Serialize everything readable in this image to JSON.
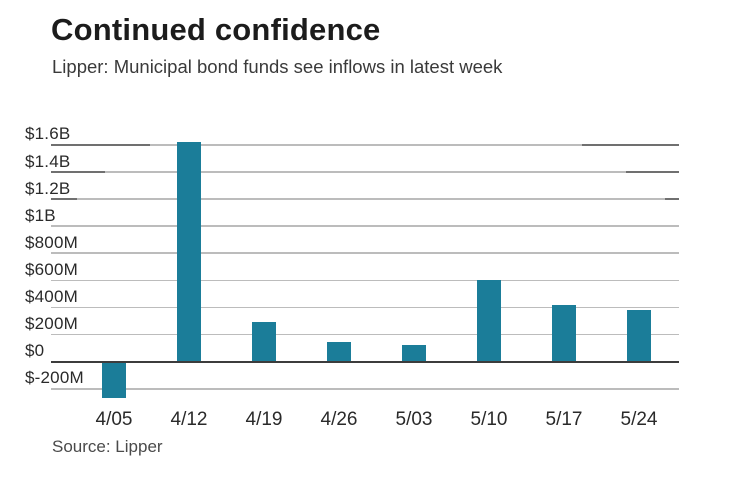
{
  "header": {
    "title": "Continued confidence",
    "subtitle": "Lipper: Municipal bond funds see inflows in latest week"
  },
  "footer": {
    "source": "Source: Lipper"
  },
  "colors": {
    "bar": "#1b7d99",
    "gridline": "#bcbcbc",
    "gridline_dark": "#707070",
    "zero_line": "#3c3c3c",
    "title_text": "#1c1c1c",
    "subtitle_text": "#3a3a3a",
    "axis_text": "#2a2a2a",
    "source_text": "#4a4a4a",
    "background": "#ffffff"
  },
  "chart_data": {
    "type": "bar",
    "title": "Continued confidence",
    "subtitle": "Lipper: Municipal bond funds see inflows in latest week",
    "source": "Source: Lipper",
    "categories": [
      "4/05",
      "4/12",
      "4/19",
      "4/26",
      "5/03",
      "5/10",
      "5/17",
      "5/24"
    ],
    "values": [
      -270,
      1620,
      290,
      145,
      125,
      605,
      420,
      385
    ],
    "unit": "USD millions (weekly net fund flows)",
    "xlabel": "",
    "ylabel": "",
    "y_ticks": [
      {
        "label": "$1.6B",
        "value": 1600
      },
      {
        "label": "$1.4B",
        "value": 1400
      },
      {
        "label": "$1.2B",
        "value": 1200
      },
      {
        "label": "$1B",
        "value": 1000
      },
      {
        "label": "$800M",
        "value": 800
      },
      {
        "label": "$600M",
        "value": 600
      },
      {
        "label": "$400M",
        "value": 400
      },
      {
        "label": "$200M",
        "value": 200
      },
      {
        "label": "$0",
        "value": 0
      },
      {
        "label": "$-200M",
        "value": -200
      }
    ],
    "ylim": [
      -400,
      1700
    ],
    "grid": true,
    "legend": false
  }
}
